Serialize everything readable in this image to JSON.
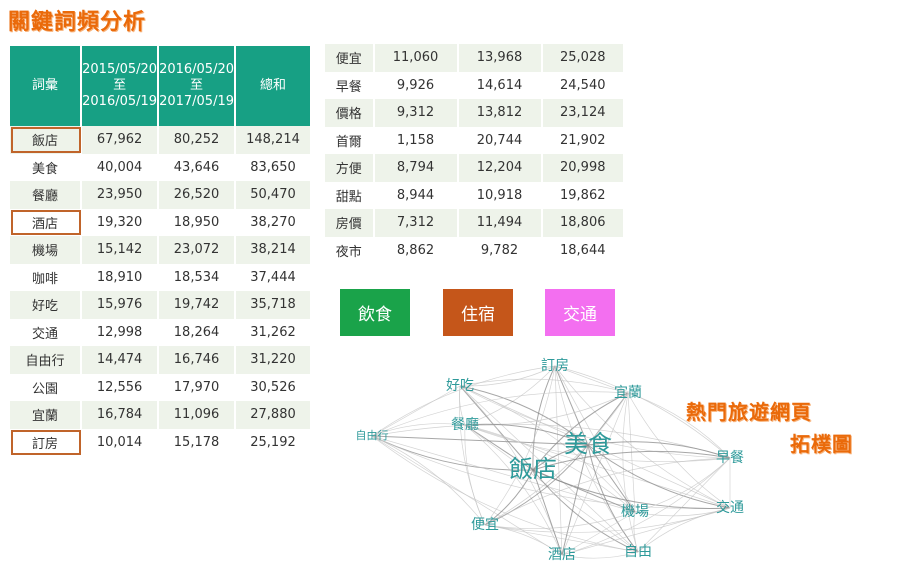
{
  "title": "關鍵詞頻分析",
  "left_table": {
    "headers": {
      "word": "詞彙",
      "period1": [
        "2015/05/20",
        "至",
        "2016/05/19"
      ],
      "period2": [
        "2016/05/20",
        "至",
        "2017/05/19"
      ],
      "total": "總和"
    },
    "rows": [
      {
        "word": "飯店",
        "p1": "67,962",
        "p2": "80,252",
        "total": "148,214",
        "highlight": true
      },
      {
        "word": "美食",
        "p1": "40,004",
        "p2": "43,646",
        "total": "83,650",
        "highlight": false
      },
      {
        "word": "餐廳",
        "p1": "23,950",
        "p2": "26,520",
        "total": "50,470",
        "highlight": false
      },
      {
        "word": "酒店",
        "p1": "19,320",
        "p2": "18,950",
        "total": "38,270",
        "highlight": true
      },
      {
        "word": "機場",
        "p1": "15,142",
        "p2": "23,072",
        "total": "38,214",
        "highlight": false
      },
      {
        "word": "咖啡",
        "p1": "18,910",
        "p2": "18,534",
        "total": "37,444",
        "highlight": false
      },
      {
        "word": "好吃",
        "p1": "15,976",
        "p2": "19,742",
        "total": "35,718",
        "highlight": false
      },
      {
        "word": "交通",
        "p1": "12,998",
        "p2": "18,264",
        "total": "31,262",
        "highlight": false
      },
      {
        "word": "自由行",
        "p1": "14,474",
        "p2": "16,746",
        "total": "31,220",
        "highlight": false
      },
      {
        "word": "公園",
        "p1": "12,556",
        "p2": "17,970",
        "total": "30,526",
        "highlight": false
      },
      {
        "word": "宜蘭",
        "p1": "16,784",
        "p2": "11,096",
        "total": "27,880",
        "highlight": false
      },
      {
        "word": "訂房",
        "p1": "10,014",
        "p2": "15,178",
        "total": "25,192",
        "highlight": true
      }
    ]
  },
  "right_table": {
    "rows": [
      {
        "word": "便宜",
        "p1": "11,060",
        "p2": "13,968",
        "total": "25,028"
      },
      {
        "word": "早餐",
        "p1": "9,926",
        "p2": "14,614",
        "total": "24,540"
      },
      {
        "word": "價格",
        "p1": "9,312",
        "p2": "13,812",
        "total": "23,124"
      },
      {
        "word": "首爾",
        "p1": "1,158",
        "p2": "20,744",
        "total": "21,902"
      },
      {
        "word": "方便",
        "p1": "8,794",
        "p2": "12,204",
        "total": "20,998"
      },
      {
        "word": "甜點",
        "p1": "8,944",
        "p2": "10,918",
        "total": "19,862"
      },
      {
        "word": "房價",
        "p1": "7,312",
        "p2": "11,494",
        "total": "18,806"
      },
      {
        "word": "夜市",
        "p1": "8,862",
        "p2": "9,782",
        "total": "18,644"
      }
    ]
  },
  "categories": [
    {
      "label": "飲食",
      "color": "#1aa34a"
    },
    {
      "label": "住宿",
      "color": "#c5561a"
    },
    {
      "label": "交通",
      "color": "#f36ff0"
    }
  ],
  "graph": {
    "title_line1": "熱門旅遊網頁",
    "title_line2": "拓樸圖",
    "node_color": "#2e9a9a",
    "nodes": [
      {
        "label": "訂房",
        "size": "small"
      },
      {
        "label": "好吃",
        "size": "small"
      },
      {
        "label": "宜蘭",
        "size": "small"
      },
      {
        "label": "自由行",
        "size": "small"
      },
      {
        "label": "餐廳",
        "size": "small"
      },
      {
        "label": "美食",
        "size": "large"
      },
      {
        "label": "飯店",
        "size": "large"
      },
      {
        "label": "早餐",
        "size": "small"
      },
      {
        "label": "機場",
        "size": "small"
      },
      {
        "label": "交通",
        "size": "small"
      },
      {
        "label": "便宜",
        "size": "small"
      },
      {
        "label": "酒店",
        "size": "small"
      },
      {
        "label": "自由",
        "size": "small"
      }
    ]
  }
}
